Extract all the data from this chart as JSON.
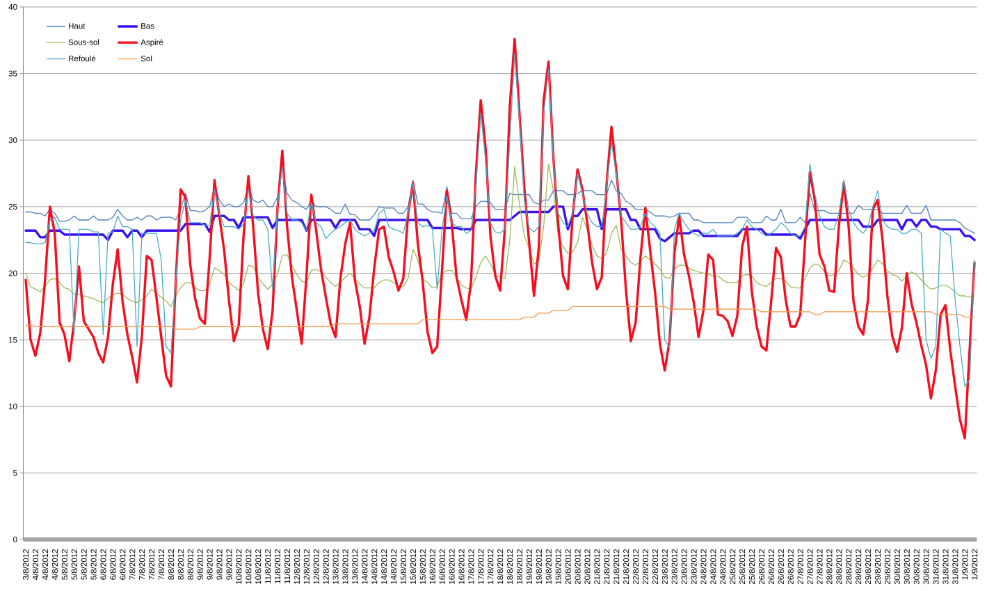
{
  "chart_data": {
    "type": "line",
    "categories": [
      "3/8/2012",
      null,
      "4/8/2012",
      null,
      "4/8/2012",
      null,
      "4/8/2012",
      null,
      "5/8/2012",
      null,
      "5/8/2012",
      null,
      "5/8/2012",
      null,
      "5/8/2012",
      null,
      "6/8/2012",
      null,
      "6/8/2012",
      null,
      "6/8/2012",
      null,
      "7/8/2012",
      null,
      "7/8/2012",
      null,
      "7/8/2012",
      null,
      "7/8/2012",
      null,
      "8/8/2012",
      null,
      "8/8/2012",
      null,
      "8/8/2012",
      null,
      "9/8/2012",
      null,
      "9/8/2012",
      null,
      "9/8/2012",
      null,
      "9/8/2012",
      null,
      "10/8/2012",
      null,
      "10/8/2012",
      null,
      "10/8/2012",
      null,
      "11/8/2012",
      null,
      "11/8/2012",
      null,
      "11/8/2012",
      null,
      "12/8/2012",
      null,
      "12/8/2012",
      null,
      "12/8/2012",
      null,
      "12/8/2012",
      null,
      "13/8/2012",
      null,
      "13/8/2012",
      null,
      "13/8/2012",
      null,
      "14/8/2012",
      null,
      "14/8/2012",
      null,
      "14/8/2012",
      null,
      "14/8/2012",
      null,
      "15/8/2012",
      null,
      "15/8/2012",
      null,
      "15/8/2012",
      null,
      "16/8/2012",
      null,
      "16/8/2012",
      null,
      "16/8/2012",
      null,
      "16/8/2012",
      null,
      "17/8/2012",
      null,
      "17/8/2012",
      null,
      "17/8/2012",
      null,
      "18/8/2012",
      null,
      "18/8/2012",
      null,
      "18/8/2012",
      null,
      "19/8/2012",
      null,
      "19/8/2012",
      null,
      "19/8/2012",
      null,
      "19/8/2012",
      null,
      "20/8/2012",
      null,
      "20/8/2012",
      null,
      "20/8/2012",
      null,
      "21/8/2012",
      null,
      "21/8/2012",
      null,
      "21/8/2012",
      null,
      "21/8/2012",
      null,
      "22/8/2012",
      null,
      "22/8/2012",
      null,
      "22/8/2012",
      null,
      "23/8/2012",
      null,
      "23/8/2012",
      null,
      "23/8/2012",
      null,
      "23/8/2012",
      null,
      "24/8/2012",
      null,
      "24/8/2012",
      null,
      "24/8/2012",
      null,
      "25/8/2012",
      null,
      "25/8/2012",
      null,
      "25/8/2012",
      null,
      "26/8/2012",
      null,
      "26/8/2012",
      null,
      "26/8/2012",
      null,
      "26/8/2012",
      null,
      "27/8/2012",
      null,
      "27/8/2012",
      null,
      "27/8/2012",
      null,
      "28/8/2012",
      null,
      "28/8/2012",
      null,
      "28/8/2012",
      null,
      "28/8/2012",
      null,
      "29/8/2012",
      null,
      "29/8/2012",
      null,
      "29/8/2012",
      null,
      "30/8/2012",
      null,
      "30/8/2012",
      null,
      "30/8/2012",
      null,
      "30/8/2012",
      null,
      "31/8/2012",
      null,
      "31/8/2012",
      null,
      "31/8/2012",
      null,
      "1/9/2012",
      null,
      "1/9/2012"
    ],
    "series": [
      {
        "name": "Haut",
        "color": "#4f81bd",
        "values": [
          24.6,
          24.6,
          24.5,
          24.5,
          24.3,
          24.8,
          24.5,
          23.9,
          23.9,
          24.0,
          24.3,
          24.0,
          24.0,
          24.0,
          24.3,
          24.0,
          24.0,
          24.0,
          24.2,
          24.8,
          24.3,
          24.0,
          24.0,
          24.2,
          24.0,
          24.3,
          24.3,
          24.0,
          24.2,
          24.2,
          24.2,
          24.0,
          24.8,
          26.0,
          24.7,
          24.7,
          24.6,
          24.7,
          25.0,
          26.5,
          25.5,
          25.0,
          25.2,
          25.0,
          25.0,
          25.3,
          26.5,
          25.5,
          25.3,
          25.5,
          25.0,
          25.0,
          25.7,
          28.0,
          26.0,
          25.5,
          25.3,
          25.0,
          24.8,
          25.5,
          25.0,
          25.0,
          25.0,
          24.8,
          24.5,
          24.5,
          25.2,
          24.4,
          24.4,
          24.0,
          24.0,
          24.0,
          24.4,
          25.0,
          24.9,
          24.9,
          24.9,
          24.5,
          24.5,
          25.0,
          27.0,
          25.2,
          25.2,
          24.8,
          24.6,
          24.6,
          24.5,
          26.5,
          24.5,
          24.5,
          24.1,
          24.1,
          24.1,
          25.0,
          25.4,
          25.4,
          25.3,
          24.8,
          24.8,
          24.8,
          26.0,
          25.9,
          25.9,
          25.9,
          25.9,
          25.3,
          25.2,
          25.5,
          25.5,
          26.2,
          26.2,
          26.2,
          25.9,
          25.9,
          26.0,
          26.2,
          26.2,
          26.2,
          25.9,
          25.9,
          25.9,
          27.0,
          26.2,
          26.0,
          25.4,
          25.2,
          24.8,
          24.8,
          24.8,
          24.6,
          24.3,
          24.3,
          24.3,
          24.2,
          24.3,
          24.5,
          24.5,
          24.5,
          24.0,
          24.0,
          23.8,
          23.8,
          23.8,
          23.8,
          23.8,
          23.8,
          23.8,
          24.2,
          24.2,
          24.2,
          23.8,
          23.8,
          23.8,
          24.3,
          24.0,
          24.0,
          24.8,
          23.8,
          23.8,
          23.8,
          24.2,
          23.8,
          26.0,
          24.7,
          24.7,
          24.7,
          24.5,
          24.5,
          24.5,
          24.5,
          24.5,
          24.5,
          25.1,
          24.8,
          24.8,
          24.8,
          24.8,
          24.5,
          24.5,
          24.5,
          24.5,
          24.5,
          25.1,
          24.5,
          24.5,
          24.5,
          25.1,
          24.0,
          24.0,
          24.0,
          24.0,
          24.0,
          24.0,
          23.8,
          23.4,
          23.2,
          23.0
        ]
      },
      {
        "name": "Bas",
        "color": "#3a12ee",
        "values": [
          23.2,
          23.2,
          23.2,
          22.7,
          22.7,
          23.2,
          23.2,
          23.2,
          22.9,
          22.9,
          22.9,
          22.9,
          22.9,
          22.9,
          22.9,
          22.9,
          22.9,
          22.5,
          23.2,
          23.2,
          23.2,
          22.7,
          23.2,
          23.2,
          22.7,
          23.2,
          23.2,
          23.2,
          23.2,
          23.2,
          23.2,
          23.2,
          23.2,
          23.7,
          23.7,
          23.7,
          23.7,
          23.7,
          23.1,
          24.3,
          24.3,
          24.3,
          24.0,
          24.0,
          23.4,
          24.2,
          24.2,
          24.2,
          24.2,
          24.2,
          24.2,
          23.4,
          24.0,
          24.0,
          24.0,
          24.0,
          24.0,
          24.0,
          23.2,
          24.0,
          24.0,
          24.0,
          24.0,
          24.0,
          23.4,
          24.0,
          24.0,
          24.0,
          24.0,
          23.3,
          23.3,
          23.3,
          22.8,
          24.0,
          24.0,
          24.0,
          24.0,
          24.0,
          24.0,
          24.0,
          24.0,
          24.0,
          24.0,
          24.0,
          23.4,
          23.4,
          23.4,
          23.4,
          23.4,
          23.4,
          23.3,
          23.3,
          23.3,
          24.0,
          24.0,
          24.0,
          24.0,
          24.0,
          24.0,
          24.0,
          24.0,
          24.3,
          24.6,
          24.6,
          24.6,
          24.6,
          24.6,
          24.6,
          24.6,
          25.0,
          25.0,
          25.0,
          23.3,
          24.3,
          24.3,
          24.8,
          24.8,
          24.8,
          24.8,
          23.3,
          24.8,
          24.8,
          24.8,
          24.8,
          24.8,
          24.0,
          24.0,
          23.3,
          23.3,
          23.3,
          23.3,
          22.6,
          22.4,
          22.7,
          23.0,
          23.0,
          23.0,
          23.0,
          23.2,
          23.2,
          22.8,
          22.8,
          22.8,
          22.8,
          22.8,
          22.8,
          22.8,
          22.8,
          23.3,
          23.3,
          23.3,
          23.3,
          23.3,
          22.9,
          22.9,
          22.9,
          22.9,
          22.9,
          22.9,
          22.9,
          22.6,
          23.3,
          24.0,
          24.0,
          24.0,
          24.0,
          24.0,
          24.0,
          24.0,
          24.0,
          24.0,
          24.0,
          24.0,
          23.5,
          23.5,
          23.5,
          24.0,
          24.0,
          24.0,
          24.0,
          24.0,
          23.3,
          24.0,
          24.0,
          23.5,
          24.0,
          24.0,
          23.5,
          23.5,
          23.3,
          23.3,
          23.3,
          23.3,
          23.3,
          22.8,
          22.8,
          22.5
        ]
      },
      {
        "name": "Sous-sol",
        "color": "#9bbb59",
        "values": [
          20.0,
          19.0,
          18.8,
          18.6,
          19.0,
          19.5,
          19.6,
          19.3,
          18.9,
          18.8,
          18.4,
          18.4,
          18.3,
          18.2,
          18.1,
          17.9,
          17.8,
          18.1,
          18.4,
          18.5,
          18.4,
          18.1,
          17.9,
          17.8,
          18.0,
          18.3,
          18.8,
          18.5,
          18.2,
          17.9,
          17.5,
          18.3,
          18.9,
          19.3,
          19.3,
          18.9,
          18.7,
          18.7,
          19.2,
          20.4,
          20.2,
          19.9,
          19.3,
          19.0,
          18.7,
          19.2,
          20.6,
          20.5,
          19.7,
          19.2,
          18.8,
          19.2,
          19.9,
          21.3,
          21.4,
          20.6,
          19.9,
          19.4,
          19.3,
          20.2,
          20.3,
          20.1,
          19.7,
          19.3,
          19.0,
          19.3,
          19.7,
          20.0,
          19.6,
          19.2,
          18.9,
          18.9,
          18.9,
          19.3,
          19.5,
          19.5,
          19.3,
          19.0,
          19.0,
          19.6,
          21.8,
          21.0,
          19.6,
          19.3,
          18.9,
          19.0,
          20.0,
          20.2,
          20.2,
          19.7,
          19.1,
          18.9,
          18.8,
          19.7,
          20.8,
          21.3,
          20.7,
          19.9,
          19.7,
          19.6,
          22.5,
          28.0,
          25.2,
          22.8,
          21.9,
          20.7,
          20.9,
          23.5,
          28.2,
          26.2,
          22.8,
          22.0,
          21.5,
          21.6,
          22.3,
          24.2,
          23.3,
          22.1,
          21.3,
          21.1,
          21.5,
          23.0,
          23.6,
          21.8,
          21.3,
          20.8,
          20.6,
          20.9,
          21.3,
          21.0,
          20.7,
          20.3,
          19.7,
          19.6,
          20.3,
          20.6,
          20.6,
          20.4,
          20.2,
          20.1,
          20.0,
          19.9,
          19.8,
          19.8,
          19.5,
          19.3,
          19.3,
          19.3,
          19.8,
          19.9,
          19.8,
          19.3,
          19.1,
          19.0,
          19.3,
          19.6,
          19.6,
          19.4,
          19.0,
          18.9,
          18.9,
          19.6,
          20.4,
          20.7,
          20.6,
          20.1,
          19.8,
          19.9,
          20.2,
          21.0,
          20.8,
          20.4,
          19.9,
          19.7,
          19.9,
          20.4,
          21.0,
          20.7,
          20.2,
          19.9,
          19.8,
          19.4,
          19.8,
          20.1,
          19.9,
          19.5,
          19.1,
          18.8,
          18.9,
          19.1,
          19.1,
          18.9,
          18.6,
          18.3,
          18.3,
          18.2,
          18.3
        ]
      },
      {
        "name": "Aspiré",
        "color": "#f80d1e",
        "values": [
          19.5,
          15.0,
          13.8,
          15.5,
          19.5,
          25.0,
          23.0,
          16.3,
          15.4,
          13.4,
          16.4,
          20.5,
          16.4,
          15.8,
          15.2,
          14.0,
          13.3,
          15.2,
          19.2,
          21.8,
          17.9,
          15.4,
          13.7,
          11.8,
          15.3,
          21.3,
          21.0,
          18.2,
          15.2,
          12.3,
          11.5,
          19.5,
          26.3,
          25.7,
          20.6,
          18.1,
          16.6,
          16.2,
          21.2,
          27.0,
          24.3,
          21.7,
          17.9,
          14.9,
          16.1,
          22.8,
          27.3,
          23.5,
          18.5,
          15.8,
          14.3,
          17.2,
          24.8,
          29.2,
          23.5,
          19.7,
          17.2,
          14.7,
          19.8,
          25.9,
          23.2,
          20.3,
          18.2,
          16.2,
          15.2,
          19.6,
          22.2,
          23.8,
          19.5,
          17.5,
          14.7,
          16.7,
          20.4,
          23.3,
          23.5,
          21.2,
          20.1,
          18.7,
          19.6,
          24.5,
          26.8,
          22.2,
          19.4,
          15.6,
          14.0,
          14.5,
          20.2,
          26.2,
          23.8,
          19.7,
          18.0,
          16.5,
          19.4,
          27.5,
          33.0,
          29.4,
          22.8,
          19.8,
          18.7,
          23.4,
          32.5,
          37.6,
          32.0,
          26.4,
          22.3,
          18.3,
          22.0,
          33.0,
          35.9,
          28.7,
          23.7,
          19.8,
          18.8,
          24.4,
          27.8,
          26.3,
          23.8,
          20.8,
          18.8,
          19.7,
          26.7,
          31.0,
          27.7,
          24.0,
          18.7,
          14.9,
          16.3,
          21.2,
          24.9,
          21.7,
          18.6,
          14.7,
          12.7,
          14.9,
          21.5,
          24.3,
          21.4,
          19.8,
          17.8,
          15.2,
          17.2,
          21.4,
          21.0,
          16.9,
          16.8,
          16.4,
          15.3,
          16.8,
          22.0,
          23.5,
          18.6,
          16.0,
          14.5,
          14.2,
          17.9,
          21.9,
          21.2,
          18.0,
          16.0,
          16.0,
          16.9,
          22.4,
          27.6,
          25.5,
          21.4,
          20.5,
          18.7,
          18.6,
          23.6,
          26.8,
          23.5,
          17.9,
          16.0,
          15.4,
          18.0,
          24.8,
          25.5,
          22.5,
          18.3,
          15.3,
          14.1,
          15.9,
          20.0,
          17.7,
          16.3,
          14.6,
          13.1,
          10.6,
          12.7,
          16.9,
          17.6,
          14.2,
          11.5,
          9.0,
          7.6,
          14.3,
          20.8
        ]
      },
      {
        "name": "Refoulé",
        "color": "#4bacc6",
        "values": [
          22.3,
          22.3,
          22.2,
          22.2,
          22.3,
          24.0,
          24.2,
          23.3,
          23.3,
          23.3,
          15.4,
          23.3,
          23.3,
          23.3,
          23.1,
          23.1,
          15.4,
          23.0,
          23.1,
          24.3,
          23.5,
          23.5,
          23.3,
          14.5,
          23.0,
          23.0,
          23.0,
          23.0,
          21.0,
          14.5,
          14.0,
          19.5,
          24.0,
          25.5,
          23.8,
          23.8,
          23.8,
          23.6,
          23.6,
          26.3,
          24.5,
          23.5,
          23.5,
          23.5,
          23.3,
          23.7,
          26.3,
          24.3,
          24.0,
          24.0,
          23.3,
          18.8,
          25.0,
          28.0,
          24.5,
          24.0,
          24.0,
          23.8,
          23.2,
          25.3,
          23.8,
          23.5,
          22.6,
          23.0,
          23.3,
          23.5,
          23.8,
          24.0,
          23.3,
          23.0,
          22.8,
          23.0,
          23.2,
          24.5,
          24.8,
          23.5,
          23.3,
          23.2,
          23.0,
          24.6,
          26.8,
          23.8,
          23.5,
          23.6,
          23.4,
          18.8,
          23.3,
          25.8,
          23.8,
          23.5,
          23.5,
          23.0,
          23.2,
          26.5,
          32.0,
          28.5,
          23.8,
          23.1,
          23.0,
          23.3,
          30.0,
          36.5,
          31.5,
          25.5,
          23.4,
          23.1,
          23.5,
          32.0,
          35.3,
          28.5,
          24.5,
          23.8,
          23.5,
          24.6,
          27.5,
          26.0,
          24.5,
          23.8,
          23.5,
          23.5,
          26.5,
          29.8,
          27.5,
          24.3,
          23.8,
          23.3,
          23.3,
          23.5,
          24.5,
          23.8,
          23.5,
          23.0,
          15.0,
          14.4,
          23.3,
          24.5,
          23.8,
          23.3,
          23.0,
          22.8,
          23.0,
          23.0,
          23.3,
          22.8,
          22.8,
          22.8,
          22.8,
          23.0,
          23.3,
          24.0,
          23.5,
          23.3,
          23.0,
          22.8,
          23.0,
          23.3,
          23.8,
          23.5,
          23.0,
          22.8,
          22.8,
          23.5,
          28.2,
          26.0,
          24.3,
          23.5,
          23.3,
          23.3,
          24.5,
          27.0,
          24.8,
          23.8,
          23.3,
          23.0,
          23.5,
          25.0,
          26.2,
          24.0,
          23.5,
          23.3,
          23.3,
          23.0,
          23.0,
          23.3,
          23.3,
          23.0,
          15.0,
          13.6,
          14.5,
          23.3,
          23.0,
          22.8,
          18.0,
          14.5,
          11.5,
          12.0,
          21.0
        ]
      },
      {
        "name": "Sol",
        "color": "#f79646",
        "values": [
          16.1,
          16.1,
          16.0,
          16.0,
          16.0,
          16.0,
          16.0,
          16.0,
          16.0,
          16.0,
          16.0,
          16.0,
          16.0,
          16.0,
          16.0,
          16.0,
          16.0,
          16.0,
          16.0,
          16.0,
          16.0,
          16.0,
          16.0,
          16.0,
          16.0,
          16.0,
          16.0,
          16.0,
          16.0,
          16.0,
          16.0,
          15.8,
          15.8,
          15.8,
          15.8,
          15.8,
          16.0,
          16.0,
          16.0,
          16.0,
          16.0,
          16.0,
          16.0,
          16.0,
          16.0,
          16.0,
          16.0,
          16.0,
          16.0,
          16.0,
          16.0,
          16.0,
          16.0,
          16.0,
          16.0,
          16.0,
          16.0,
          16.0,
          16.0,
          16.0,
          16.0,
          16.0,
          16.0,
          16.0,
          16.2,
          16.2,
          16.2,
          16.2,
          16.2,
          16.2,
          16.2,
          16.2,
          16.2,
          16.2,
          16.2,
          16.2,
          16.2,
          16.2,
          16.2,
          16.2,
          16.2,
          16.2,
          16.5,
          16.5,
          16.5,
          16.5,
          16.5,
          16.5,
          16.5,
          16.5,
          16.5,
          16.5,
          16.5,
          16.5,
          16.5,
          16.5,
          16.5,
          16.5,
          16.5,
          16.5,
          16.5,
          16.5,
          16.5,
          16.7,
          16.7,
          16.7,
          17.0,
          17.0,
          17.0,
          17.2,
          17.2,
          17.2,
          17.2,
          17.5,
          17.5,
          17.5,
          17.5,
          17.5,
          17.5,
          17.5,
          17.5,
          17.5,
          17.5,
          17.5,
          17.5,
          17.5,
          17.5,
          17.5,
          17.5,
          17.5,
          17.5,
          17.5,
          17.5,
          17.3,
          17.3,
          17.3,
          17.3,
          17.3,
          17.3,
          17.3,
          17.3,
          17.3,
          17.3,
          17.3,
          17.3,
          17.3,
          17.3,
          17.3,
          17.3,
          17.3,
          17.3,
          17.3,
          17.1,
          17.1,
          17.1,
          17.1,
          17.1,
          17.1,
          17.1,
          17.1,
          17.1,
          17.1,
          17.1,
          16.9,
          16.9,
          17.1,
          17.1,
          17.1,
          17.1,
          17.1,
          17.1,
          17.1,
          17.1,
          17.1,
          17.1,
          17.1,
          17.1,
          17.1,
          17.1,
          17.1,
          17.1,
          17.1,
          17.1,
          17.1,
          17.1,
          17.1,
          17.1,
          17.1,
          16.9,
          16.9,
          16.9,
          16.9,
          16.9,
          16.9,
          16.7,
          16.7,
          16.7
        ]
      }
    ],
    "ylim": [
      0,
      40
    ],
    "yticks": [
      0,
      5,
      10,
      15,
      20,
      25,
      30,
      35,
      40
    ],
    "grid": "y",
    "legend": "top left"
  }
}
